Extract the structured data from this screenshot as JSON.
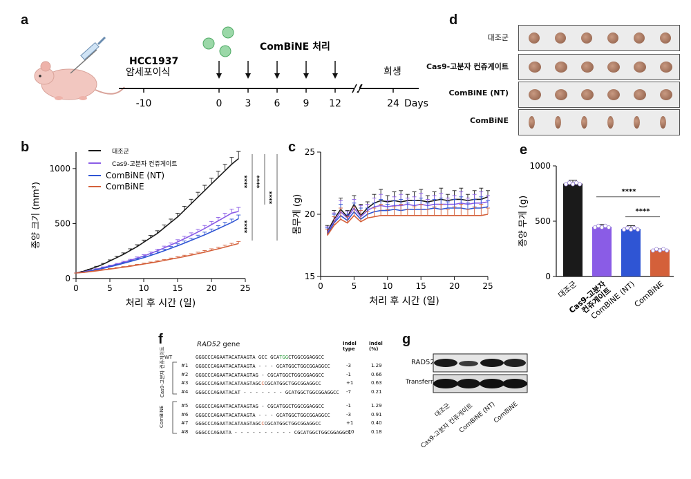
{
  "panels": {
    "a": "a",
    "b": "b",
    "c": "c",
    "d": "d",
    "e": "e",
    "f": "f",
    "g": "g"
  },
  "panel_a": {
    "event_left_line1": "HCC1937",
    "event_left_line2": "암세포이식",
    "treatment": "ComBiNE 처리",
    "endpoint": "희생",
    "ticks": [
      "-10",
      "0",
      "3",
      "6",
      "9",
      "12",
      "24"
    ],
    "unit": "Days"
  },
  "panel_b": {
    "legend": [
      "대조군",
      "Cas9-고분자 컨쥬게이트",
      "ComBiNE (NT)",
      "ComBiNE"
    ],
    "ylabel": "종양 크기 (mm³)",
    "xlabel": "처리 후 시간 (일)",
    "sig": [
      "****",
      "****",
      "****",
      "****"
    ]
  },
  "panel_c": {
    "ylabel": "몸무게 (g)",
    "xlabel": "처리 후 시간 (일)"
  },
  "panel_d": {
    "rows": [
      "대조군",
      "Cas9-고분자 컨쥬게이트",
      "ComBiNE (NT)",
      "ComBiNE"
    ]
  },
  "panel_e": {
    "ylabel": "종양 무게 (g)",
    "sig": [
      "****",
      "****"
    ]
  },
  "panel_f": {
    "gene": "RAD52",
    "gene_suffix": " gene",
    "col_type": "Indel type",
    "col_pct": "Indel (%)",
    "group1": "Cas9-고분자 컨쥬게이트",
    "group2": "ComBiNE",
    "wt_label": "WT",
    "wt_seq_a": "GGGCCCAGAATACATAAGTA GCC GCA",
    "wt_seq_pam": "TGG",
    "wt_seq_b": "CTGGCGGAGGCC",
    "rows": [
      {
        "id": "#1",
        "seq": "GGGCCCAGAATACATAAGTA - - - GCATGGCTGGCGGAGGCC",
        "type": "-3",
        "pct": "1.29"
      },
      {
        "id": "#2",
        "seq": "GGGCCCAGAATACATAAGTAG - CGCATGGCTGGCGGAGGCC",
        "type": "-1",
        "pct": "0.66"
      },
      {
        "id": "#3",
        "seq": "GGGCCCAGAATACATAAGTAGCCCGCATGGCTGGCGGAGGCC",
        "type": "+1",
        "pct": "0.63"
      },
      {
        "id": "#4",
        "seq": "GGGCCCAGAATACAT - - - - - - - GCATGGCTGGCGGAGGCC",
        "type": "-7",
        "pct": "0.21"
      },
      {
        "id": "#5",
        "seq": "GGGCCCAGAATACATAAGTAG - CGCATGGCTGGCGGAGGCC",
        "type": "-1",
        "pct": "1.29"
      },
      {
        "id": "#6",
        "seq": "GGGCCCAGAATACATAAGTA - - - GCATGGCTGGCGGAGGCC",
        "type": "-3",
        "pct": "0.91"
      },
      {
        "id": "#7",
        "seq": "GGGCCCAGAATACATAAGTAGCCCGCATGGCTGGCGGAGGCC",
        "type": "+1",
        "pct": "0.40"
      },
      {
        "id": "#8",
        "seq": "GGGCCCAGAATA - - - - - - - - - - CGCATGGCTGGCGGAGGCC",
        "type": "-10",
        "pct": "0.18"
      }
    ]
  },
  "panel_g": {
    "bands": [
      "RAD52",
      "Transferrin"
    ],
    "lanes": [
      "대조군",
      "Cas9-고분자 컨쥬게이트",
      "ComBiNE (NT)",
      "ComBiNE"
    ]
  },
  "colors": {
    "control": "#1a1a1a",
    "cas9": "#8a5ce6",
    "nt": "#2f55d4",
    "combine": "#d4603a"
  },
  "chart_data": [
    {
      "type": "line",
      "panel": "b",
      "xlabel": "처리 후 시간 (일)",
      "ylabel": "종양 크기 (mm³)",
      "xlim": [
        0,
        25
      ],
      "ylim": [
        0,
        1150
      ],
      "xticks": [
        0,
        5,
        10,
        15,
        20,
        25
      ],
      "yticks": [
        0,
        500,
        1000
      ],
      "x": [
        0,
        1,
        2,
        3,
        4,
        5,
        6,
        7,
        8,
        9,
        10,
        11,
        12,
        13,
        14,
        15,
        16,
        17,
        18,
        19,
        20,
        21,
        22,
        23,
        24
      ],
      "series": [
        {
          "name": "대조군",
          "values": [
            50,
            65,
            85,
            105,
            130,
            160,
            190,
            220,
            255,
            290,
            330,
            370,
            410,
            460,
            510,
            560,
            620,
            680,
            740,
            800,
            860,
            920,
            980,
            1040,
            1090
          ]
        },
        {
          "name": "Cas9-고분자 컨쥬게이트",
          "values": [
            50,
            60,
            72,
            85,
            100,
            115,
            130,
            148,
            165,
            185,
            205,
            228,
            252,
            278,
            305,
            333,
            362,
            392,
            423,
            455,
            490,
            525,
            560,
            595,
            610
          ]
        },
        {
          "name": "ComBiNE (NT)",
          "values": [
            50,
            58,
            68,
            80,
            93,
            107,
            122,
            138,
            155,
            172,
            190,
            210,
            230,
            252,
            275,
            298,
            322,
            347,
            372,
            398,
            425,
            453,
            482,
            510,
            545
          ]
        },
        {
          "name": "ComBiNE",
          "values": [
            50,
            55,
            62,
            70,
            78,
            86,
            94,
            103,
            112,
            122,
            132,
            142,
            153,
            164,
            176,
            188,
            200,
            213,
            226,
            240,
            255,
            270,
            286,
            302,
            318
          ]
        }
      ]
    },
    {
      "type": "line",
      "panel": "c",
      "xlabel": "처리 후 시간 (일)",
      "ylabel": "몸무게 (g)",
      "xlim": [
        0,
        25
      ],
      "ylim": [
        15,
        25
      ],
      "xticks": [
        0,
        5,
        10,
        15,
        20,
        25
      ],
      "yticks": [
        15,
        20,
        25
      ],
      "x": [
        1,
        2,
        3,
        4,
        5,
        6,
        7,
        8,
        9,
        10,
        11,
        12,
        13,
        14,
        15,
        16,
        17,
        18,
        19,
        20,
        21,
        22,
        23,
        24,
        25
      ],
      "series": [
        {
          "name": "대조군",
          "values": [
            18.6,
            19.6,
            20.4,
            19.8,
            20.8,
            19.9,
            20.5,
            20.9,
            21.1,
            21.0,
            21.1,
            21.0,
            21.1,
            21.1,
            21.1,
            21.0,
            21.1,
            21.2,
            21.1,
            21.2,
            21.2,
            21.1,
            21.2,
            21.2,
            21.4
          ]
        },
        {
          "name": "Cas9-고분자 컨쥬게이트",
          "values": [
            18.5,
            19.4,
            20.2,
            19.7,
            20.5,
            19.8,
            20.3,
            20.6,
            20.7,
            20.6,
            20.7,
            20.7,
            20.8,
            20.7,
            20.8,
            20.7,
            20.8,
            20.8,
            20.8,
            20.8,
            20.9,
            20.8,
            20.9,
            20.9,
            21.0
          ]
        },
        {
          "name": "ComBiNE (NT)",
          "values": [
            18.4,
            19.3,
            19.9,
            19.5,
            20.2,
            19.6,
            20.0,
            20.2,
            20.3,
            20.3,
            20.4,
            20.3,
            20.4,
            20.4,
            20.4,
            20.4,
            20.5,
            20.4,
            20.5,
            20.5,
            20.5,
            20.4,
            20.5,
            20.5,
            20.6
          ]
        },
        {
          "name": "ComBiNE",
          "values": [
            18.3,
            19.1,
            19.6,
            19.3,
            19.9,
            19.4,
            19.7,
            19.8,
            19.9,
            19.9,
            19.9,
            19.9,
            19.9,
            19.9,
            19.9,
            19.9,
            19.9,
            19.9,
            19.9,
            19.9,
            19.9,
            19.9,
            19.9,
            19.9,
            20.0
          ]
        }
      ]
    },
    {
      "type": "bar",
      "panel": "e",
      "ylabel": "종양 무게 (g)",
      "ylim": [
        0,
        1000
      ],
      "yticks": [
        0,
        500,
        1000
      ],
      "categories": [
        "대조군",
        "Cas9-고분자 컨쥬게이트",
        "ComBiNE (NT)",
        "ComBiNE"
      ],
      "values": [
        840,
        450,
        430,
        240
      ],
      "errors": [
        30,
        20,
        30,
        10
      ]
    }
  ]
}
